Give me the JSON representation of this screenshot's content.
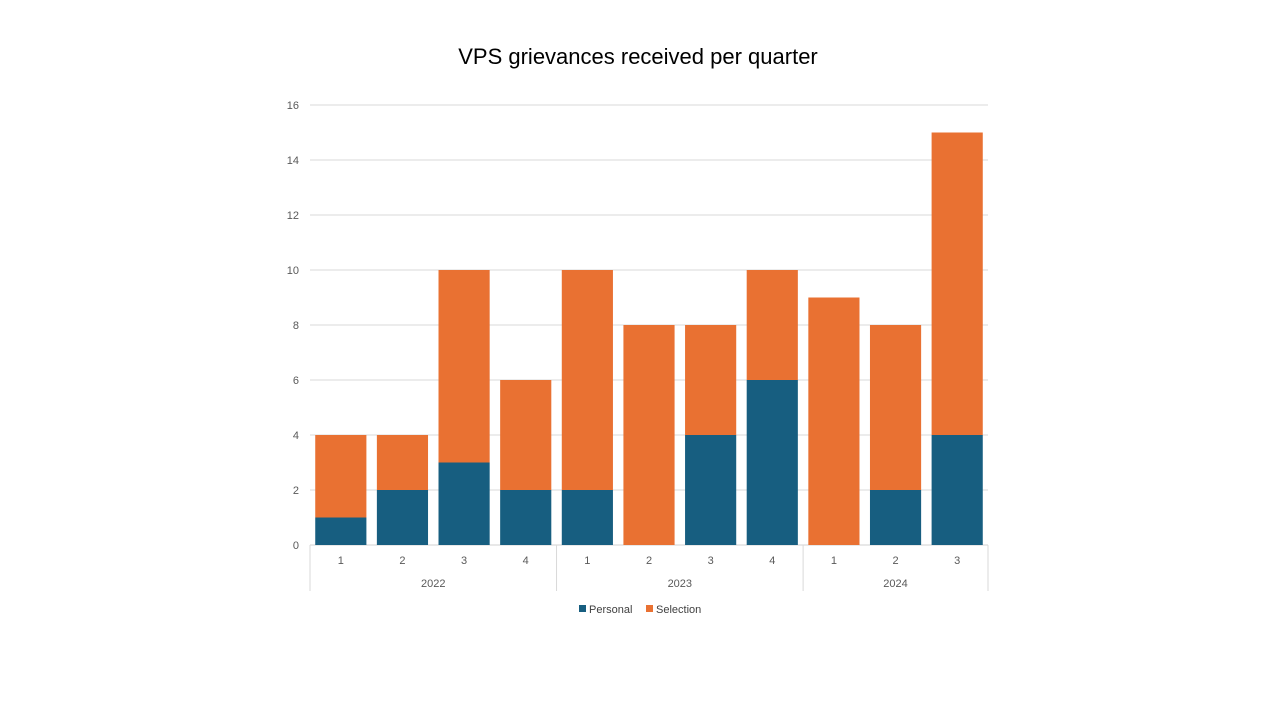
{
  "chart_data": {
    "type": "bar",
    "stacked": true,
    "title": "VPS grievances received per quarter",
    "xlabel": "",
    "ylabel": "",
    "ylim": [
      0,
      16
    ],
    "yticks": [
      "0",
      "2",
      "4",
      "6",
      "8",
      "10",
      "12",
      "14",
      "16"
    ],
    "grid": true,
    "legend_position": "bottom",
    "groups": [
      {
        "label": "2022",
        "categories": [
          "1",
          "2",
          "3",
          "4"
        ]
      },
      {
        "label": "2023",
        "categories": [
          "1",
          "2",
          "3",
          "4"
        ]
      },
      {
        "label": "2024",
        "categories": [
          "1",
          "2",
          "3"
        ]
      }
    ],
    "series": [
      {
        "name": "Personal",
        "color": "#175e80",
        "values": [
          1,
          2,
          3,
          2,
          2,
          0,
          4,
          6,
          0,
          2,
          4
        ]
      },
      {
        "name": "Selection",
        "color": "#e97132",
        "values": [
          3,
          2,
          7,
          4,
          8,
          8,
          4,
          4,
          9,
          6,
          11
        ]
      }
    ]
  }
}
